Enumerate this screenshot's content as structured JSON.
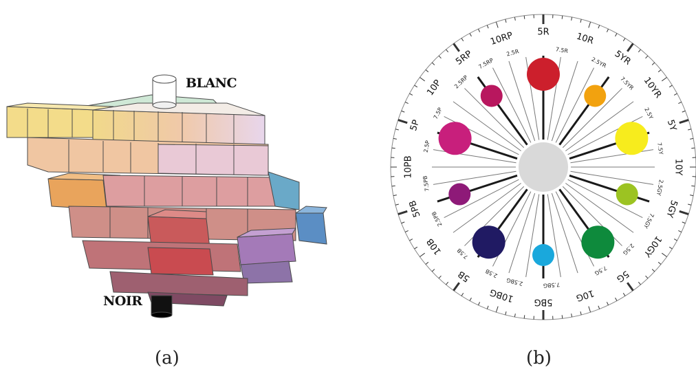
{
  "captions": {
    "a": "(a)",
    "b": "(b)"
  },
  "solid": {
    "white_label": "BLANC",
    "black_label": "NOIR"
  },
  "hue_circle": {
    "principal_hues": [
      "5R",
      "10R",
      "5YR",
      "10YR",
      "5Y",
      "10Y",
      "5GY",
      "10GY",
      "5G",
      "10G",
      "5BG",
      "10BG",
      "5B",
      "10B",
      "5PB",
      "10PB",
      "5P",
      "10P",
      "5RP",
      "10RP"
    ],
    "sub_labels": [
      {
        "text": "2.5R",
        "angle": -15
      },
      {
        "text": "7.5R",
        "angle": 9
      },
      {
        "text": "2.5YR",
        "angle": 28
      },
      {
        "text": "7.5YR",
        "angle": 45
      },
      {
        "text": "2.5Y",
        "angle": 63
      },
      {
        "text": "7.5Y",
        "angle": 81
      },
      {
        "text": "2.5GY",
        "angle": 100
      },
      {
        "text": "7.5GY",
        "angle": 117
      },
      {
        "text": "2.5G",
        "angle": 134
      },
      {
        "text": "7.5G",
        "angle": 151
      },
      {
        "text": "7.5BG",
        "angle": 176
      },
      {
        "text": "2.5BG",
        "angle": 194
      },
      {
        "text": "2.5B",
        "angle": 206
      },
      {
        "text": "7.5B",
        "angle": 223
      },
      {
        "text": "2.5PB",
        "angle": 244
      },
      {
        "text": "7.5PB",
        "angle": 262
      },
      {
        "text": "2.5P",
        "angle": 280
      },
      {
        "text": "7.5P",
        "angle": 297
      },
      {
        "text": "2.5RP",
        "angle": 316
      },
      {
        "text": "7.5RP",
        "angle": 331
      }
    ],
    "hue_dots": [
      {
        "hue": "5R",
        "color": "#cc1f2c",
        "angle": 0,
        "size": "large"
      },
      {
        "hue": "5YR",
        "color": "#f2a20f",
        "angle": 36,
        "size": "small"
      },
      {
        "hue": "5Y",
        "color": "#f7ec1d",
        "angle": 72,
        "size": "large"
      },
      {
        "hue": "5GY",
        "color": "#9cc322",
        "angle": 108,
        "size": "small"
      },
      {
        "hue": "5G",
        "color": "#0e8a3c",
        "angle": 144,
        "size": "large"
      },
      {
        "hue": "5BG",
        "color": "#1aa8dc",
        "angle": 180,
        "size": "small"
      },
      {
        "hue": "5B",
        "color": "#201a63",
        "angle": 216,
        "size": "large"
      },
      {
        "hue": "5PB",
        "color": "#8e1a78",
        "angle": 252,
        "size": "small"
      },
      {
        "hue": "5P",
        "color": "#c81f7c",
        "angle": 288,
        "size": "large"
      },
      {
        "hue": "5RP",
        "color": "#b8175e",
        "angle": 324,
        "size": "small"
      }
    ],
    "center_color": "#d9d9d9",
    "spoke_color": "#1a1a1a"
  }
}
